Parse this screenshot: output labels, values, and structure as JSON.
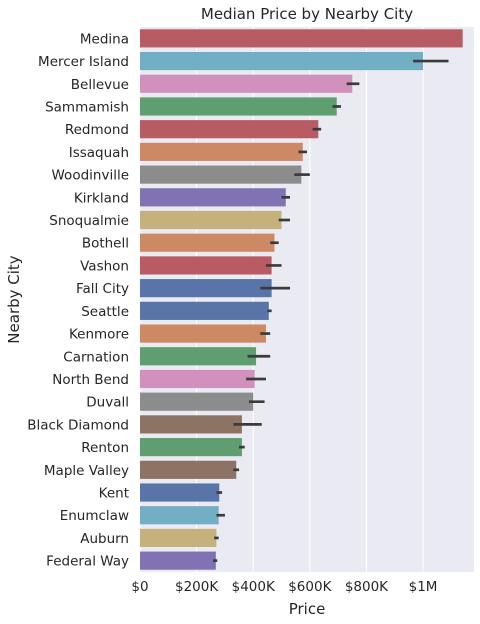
{
  "chart_data": {
    "type": "bar",
    "orientation": "horizontal",
    "title": "Median Price by Nearby City",
    "xlabel": "Price",
    "ylabel": "Nearby City",
    "xlim": [
      0,
      1180000
    ],
    "xticks": [
      0,
      200000,
      400000,
      600000,
      800000,
      1000000
    ],
    "xtick_labels": [
      "$0",
      "$200K",
      "$400K",
      "$600K",
      "$800K",
      "$1M"
    ],
    "grid": true,
    "background": "#eaeaf2",
    "categories": [
      "Medina",
      "Mercer Island",
      "Bellevue",
      "Sammamish",
      "Redmond",
      "Issaquah",
      "Woodinville",
      "Kirkland",
      "Snoqualmie",
      "Bothell",
      "Vashon",
      "Fall City",
      "Seattle",
      "Kenmore",
      "Carnation",
      "North Bend",
      "Duvall",
      "Black Diamond",
      "Renton",
      "Maple Valley",
      "Kent",
      "Enumclaw",
      "Auburn",
      "Federal Way"
    ],
    "values": [
      1140000,
      1000000,
      750000,
      695000,
      630000,
      575000,
      570000,
      515000,
      500000,
      475000,
      465000,
      465000,
      455000,
      445000,
      410000,
      405000,
      400000,
      360000,
      360000,
      340000,
      280000,
      278000,
      270000,
      268000
    ],
    "error_bars": [
      null,
      [
        965000,
        1090000
      ],
      [
        730000,
        775000
      ],
      [
        680000,
        710000
      ],
      [
        610000,
        640000
      ],
      [
        560000,
        590000
      ],
      [
        545000,
        600000
      ],
      [
        500000,
        530000
      ],
      [
        490000,
        530000
      ],
      [
        460000,
        490000
      ],
      [
        445000,
        500000
      ],
      [
        425000,
        530000
      ],
      [
        450000,
        465000
      ],
      [
        425000,
        460000
      ],
      [
        380000,
        460000
      ],
      [
        375000,
        445000
      ],
      [
        385000,
        440000
      ],
      [
        330000,
        430000
      ],
      [
        350000,
        370000
      ],
      [
        330000,
        350000
      ],
      [
        270000,
        290000
      ],
      [
        270000,
        300000
      ],
      [
        262000,
        278000
      ],
      [
        258000,
        273000
      ]
    ],
    "colors": [
      "#b85b63",
      "#72aec4",
      "#d291bd",
      "#5f9e6e",
      "#b85b63",
      "#cc8963",
      "#8c8c8c",
      "#8172b3",
      "#c4b17c",
      "#cc8963",
      "#b85b63",
      "#5874a8",
      "#5874a8",
      "#cc8963",
      "#5f9e6e",
      "#d291bd",
      "#8c8c8c",
      "#8c7363",
      "#5f9e6e",
      "#8c7363",
      "#5874a8",
      "#72aec4",
      "#c4b17c",
      "#8172b3"
    ]
  }
}
